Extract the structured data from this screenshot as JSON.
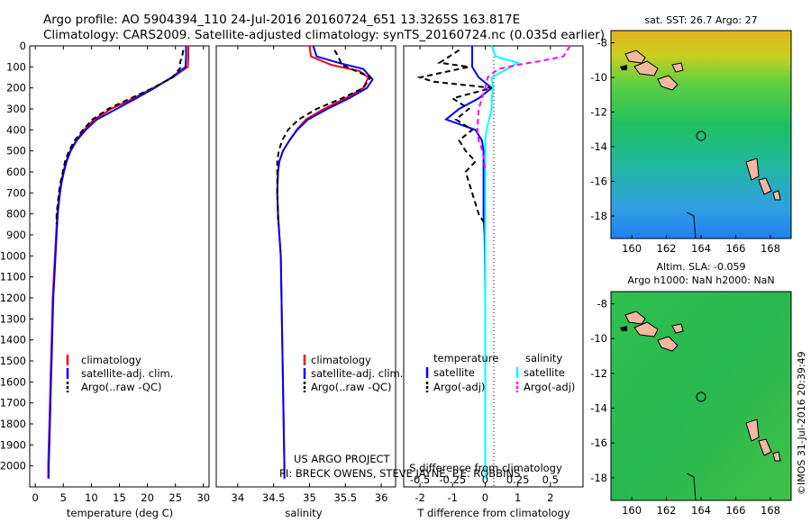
{
  "header": {
    "line1": "Argo profile: AO 5904394_110 24-Jul-2016 20160724_651 13.3265S 163.817E",
    "line2": "Climatology: CARS2009. Satellite-adjusted climatology: synTS_20160724.nc (0.035d earlier)"
  },
  "colors": {
    "climatology": "#ff0000",
    "satellite": "#0000ff",
    "argo": "#000000",
    "salinity_satellite": "#00ffff",
    "salinity_argo": "#ff00ff"
  },
  "footer": {
    "project": "US ARGO PROJECT",
    "pis": "PI: BRECK OWENS, STEVE JAYNE, P.E. ROBBINS",
    "imos": "©IMOS 31-Jul-2016 20:39:49"
  },
  "chart_data": [
    {
      "id": "temperature",
      "type": "line",
      "xlabel": "temperature (deg C)",
      "ylabel": "",
      "xlim": [
        -1,
        31
      ],
      "ylim": [
        2100,
        0
      ],
      "xticks": [
        0,
        5,
        10,
        15,
        20,
        25,
        30
      ],
      "yticks": [
        0,
        100,
        200,
        300,
        400,
        500,
        600,
        700,
        800,
        900,
        1000,
        1100,
        1200,
        1300,
        1400,
        1500,
        1600,
        1700,
        1800,
        1900,
        2000
      ],
      "legend": [
        "climatology",
        "satellite-adj. clim.",
        "Argo(..raw -QC)"
      ],
      "series": [
        {
          "name": "climatology",
          "color": "#ff0000",
          "dash": "",
          "points": [
            [
              27.3,
              0
            ],
            [
              27.3,
              50
            ],
            [
              27.2,
              100
            ],
            [
              24.5,
              150
            ],
            [
              21,
              200
            ],
            [
              17.5,
              250
            ],
            [
              13.5,
              300
            ],
            [
              10.5,
              350
            ],
            [
              8.7,
              400
            ],
            [
              7.3,
              450
            ],
            [
              6.2,
              500
            ],
            [
              5.5,
              550
            ],
            [
              5.0,
              600
            ],
            [
              4.6,
              650
            ],
            [
              4.3,
              700
            ],
            [
              4.1,
              750
            ],
            [
              3.9,
              800
            ],
            [
              3.7,
              900
            ],
            [
              3.5,
              1000
            ],
            [
              3.3,
              1100
            ],
            [
              3.1,
              1200
            ],
            [
              3.0,
              1300
            ],
            [
              2.9,
              1400
            ],
            [
              2.8,
              1500
            ],
            [
              2.7,
              1600
            ],
            [
              2.6,
              1700
            ],
            [
              2.5,
              1800
            ],
            [
              2.4,
              1900
            ],
            [
              2.3,
              2000
            ],
            [
              2.3,
              2060
            ]
          ]
        },
        {
          "name": "satellite-adj. clim.",
          "color": "#0000ff",
          "dash": "",
          "points": [
            [
              26.9,
              0
            ],
            [
              26.9,
              50
            ],
            [
              26.8,
              100
            ],
            [
              24.3,
              150
            ],
            [
              21.3,
              200
            ],
            [
              18,
              250
            ],
            [
              14.5,
              300
            ],
            [
              11,
              350
            ],
            [
              9,
              400
            ],
            [
              7.4,
              450
            ],
            [
              6.3,
              500
            ],
            [
              5.6,
              550
            ],
            [
              5.1,
              600
            ],
            [
              4.7,
              650
            ],
            [
              4.4,
              700
            ],
            [
              4.2,
              750
            ],
            [
              4.0,
              800
            ],
            [
              3.8,
              900
            ],
            [
              3.6,
              1000
            ],
            [
              3.4,
              1100
            ],
            [
              3.2,
              1200
            ],
            [
              3.1,
              1300
            ],
            [
              3.0,
              1400
            ],
            [
              2.9,
              1500
            ],
            [
              2.8,
              1600
            ],
            [
              2.7,
              1700
            ],
            [
              2.6,
              1800
            ],
            [
              2.5,
              1900
            ],
            [
              2.4,
              2000
            ],
            [
              2.4,
              2060
            ]
          ]
        },
        {
          "name": "Argo(..raw -QC)",
          "color": "#000000",
          "dash": "6,4",
          "points": [
            [
              26.4,
              20
            ],
            [
              26.2,
              50
            ],
            [
              25.8,
              80
            ],
            [
              26.0,
              100
            ],
            [
              24.5,
              150
            ],
            [
              21,
              200
            ],
            [
              17,
              250
            ],
            [
              13,
              300
            ],
            [
              10.2,
              350
            ],
            [
              8.5,
              400
            ],
            [
              7.0,
              450
            ],
            [
              6.0,
              500
            ],
            [
              5.3,
              550
            ],
            [
              4.9,
              600
            ],
            [
              4.5,
              650
            ],
            [
              4.2,
              700
            ],
            [
              4.0,
              750
            ],
            [
              3.8,
              800
            ],
            [
              3.8,
              850
            ]
          ]
        }
      ]
    },
    {
      "id": "salinity",
      "type": "line",
      "xlabel": "salinity",
      "ylabel": "",
      "xlim": [
        33.7,
        36.2
      ],
      "ylim": [
        2100,
        0
      ],
      "xticks": [
        34,
        34.5,
        35,
        35.5,
        36
      ],
      "legend": [
        "climatology",
        "satellite-adj. clim.",
        "Argo(..raw -QC)"
      ],
      "series": [
        {
          "name": "climatology",
          "color": "#ff0000",
          "dash": "",
          "points": [
            [
              35.0,
              0
            ],
            [
              35.02,
              50
            ],
            [
              35.3,
              90
            ],
            [
              35.7,
              120
            ],
            [
              35.82,
              150
            ],
            [
              35.75,
              200
            ],
            [
              35.5,
              250
            ],
            [
              35.2,
              300
            ],
            [
              34.95,
              350
            ],
            [
              34.82,
              400
            ],
            [
              34.72,
              450
            ],
            [
              34.63,
              500
            ],
            [
              34.58,
              550
            ],
            [
              34.56,
              600
            ],
            [
              34.55,
              700
            ],
            [
              34.56,
              800
            ],
            [
              34.58,
              900
            ],
            [
              34.6,
              1000
            ],
            [
              34.61,
              1200
            ],
            [
              34.62,
              1400
            ],
            [
              34.63,
              1600
            ],
            [
              34.64,
              1800
            ],
            [
              34.65,
              2000
            ],
            [
              34.65,
              2060
            ]
          ]
        },
        {
          "name": "satellite-adj. clim.",
          "color": "#0000ff",
          "dash": "",
          "points": [
            [
              35.05,
              0
            ],
            [
              35.1,
              50
            ],
            [
              35.4,
              80
            ],
            [
              35.75,
              110
            ],
            [
              35.88,
              160
            ],
            [
              35.8,
              200
            ],
            [
              35.55,
              250
            ],
            [
              35.25,
              300
            ],
            [
              34.98,
              350
            ],
            [
              34.83,
              400
            ],
            [
              34.72,
              450
            ],
            [
              34.63,
              500
            ],
            [
              34.58,
              550
            ],
            [
              34.56,
              600
            ],
            [
              34.55,
              700
            ],
            [
              34.56,
              800
            ],
            [
              34.58,
              900
            ],
            [
              34.6,
              1000
            ],
            [
              34.61,
              1200
            ],
            [
              34.62,
              1400
            ],
            [
              34.63,
              1600
            ],
            [
              34.64,
              1800
            ],
            [
              34.65,
              2000
            ],
            [
              34.65,
              2060
            ]
          ]
        },
        {
          "name": "Argo(..raw -QC)",
          "color": "#000000",
          "dash": "6,4",
          "points": [
            [
              35.35,
              20
            ],
            [
              35.4,
              50
            ],
            [
              35.45,
              90
            ],
            [
              35.65,
              120
            ],
            [
              35.85,
              150
            ],
            [
              35.75,
              200
            ],
            [
              35.45,
              250
            ],
            [
              35.1,
              300
            ],
            [
              34.85,
              350
            ],
            [
              34.7,
              400
            ],
            [
              34.62,
              450
            ],
            [
              34.57,
              500
            ],
            [
              34.55,
              550
            ],
            [
              34.55,
              600
            ],
            [
              34.55,
              700
            ],
            [
              34.56,
              800
            ],
            [
              34.56,
              850
            ]
          ]
        }
      ]
    },
    {
      "id": "differences",
      "type": "line",
      "xlabel": "T difference from climatology",
      "x2label": "S difference from climatology",
      "xlim": [
        -2.5,
        3.0
      ],
      "x2lim": [
        -0.625,
        0.75
      ],
      "ylim": [
        2100,
        0
      ],
      "xticks": [
        -2,
        -1,
        0,
        1,
        2
      ],
      "x2ticks": [
        "-0.5",
        "-0.25",
        "0",
        "0.25",
        "0.5"
      ],
      "legend_headers": [
        "temperature",
        "salinity"
      ],
      "legend": [
        "satellite",
        "Argo(-adj)",
        "satellite",
        "Argo(-adj)"
      ],
      "series": [
        {
          "name": "temperature satellite",
          "color": "#0000ff",
          "dash": "",
          "axis": "T",
          "points": [
            [
              -0.4,
              0
            ],
            [
              -0.4,
              50
            ],
            [
              -0.4,
              100
            ],
            [
              -0.2,
              150
            ],
            [
              0.2,
              200
            ],
            [
              -0.2,
              250
            ],
            [
              -0.8,
              300
            ],
            [
              -1.2,
              350
            ],
            [
              -0.3,
              400
            ],
            [
              -0.1,
              450
            ],
            [
              -0.05,
              500
            ],
            [
              -0.05,
              600
            ],
            [
              -0.05,
              700
            ],
            [
              -0.05,
              800
            ],
            [
              -0.02,
              900
            ],
            [
              -0.01,
              1000
            ],
            [
              0,
              1200
            ],
            [
              0,
              1500
            ],
            [
              0,
              2060
            ]
          ]
        },
        {
          "name": "temperature Argo(-adj)",
          "color": "#000000",
          "dash": "6,4",
          "axis": "T",
          "points": [
            [
              -0.8,
              20
            ],
            [
              -1.1,
              50
            ],
            [
              -1.4,
              80
            ],
            [
              -0.5,
              100
            ],
            [
              -2.0,
              150
            ],
            [
              -1.6,
              170
            ],
            [
              0.2,
              200
            ],
            [
              -1.0,
              250
            ],
            [
              -0.5,
              300
            ],
            [
              -0.9,
              350
            ],
            [
              -0.4,
              400
            ],
            [
              -0.8,
              450
            ],
            [
              -0.6,
              500
            ],
            [
              -0.3,
              550
            ],
            [
              -0.6,
              600
            ],
            [
              -0.5,
              650
            ],
            [
              -0.4,
              700
            ],
            [
              -0.3,
              750
            ],
            [
              -0.2,
              800
            ],
            [
              0,
              850
            ]
          ]
        },
        {
          "name": "salinity satellite",
          "color": "#00ffff",
          "dash": "",
          "axis": "S",
          "points": [
            [
              0.05,
              0
            ],
            [
              0.08,
              50
            ],
            [
              0.25,
              80
            ],
            [
              0.2,
              100
            ],
            [
              0.05,
              150
            ],
            [
              0.06,
              200
            ],
            [
              0.05,
              250
            ],
            [
              0.05,
              300
            ],
            [
              0.03,
              350
            ],
            [
              0.01,
              400
            ],
            [
              0,
              450
            ],
            [
              0,
              500
            ],
            [
              0,
              700
            ],
            [
              0,
              1000
            ],
            [
              0,
              2060
            ]
          ]
        },
        {
          "name": "salinity Argo(-adj)",
          "color": "#ff00ff",
          "dash": "6,4",
          "axis": "S",
          "points": [
            [
              0.65,
              0
            ],
            [
              0.6,
              50
            ],
            [
              0.4,
              75
            ],
            [
              0.25,
              90
            ],
            [
              0.1,
              110
            ],
            [
              0.02,
              150
            ],
            [
              0,
              200
            ],
            [
              -0.05,
              300
            ],
            [
              -0.06,
              400
            ],
            [
              -0.05,
              450
            ],
            [
              -0.02,
              500
            ],
            [
              0,
              600
            ]
          ]
        }
      ]
    },
    {
      "id": "sst_map",
      "type": "heatmap",
      "title": "sat. SST: 26.7 Argo: 27",
      "xlim": [
        158.8,
        169.2
      ],
      "ylim": [
        -19.3,
        -7.3
      ],
      "xticks": [
        160,
        162,
        164,
        166,
        168
      ],
      "yticks": [
        -8,
        -10,
        -12,
        -14,
        -16,
        -18
      ],
      "argo_position": [
        163.817,
        -13.3265
      ]
    },
    {
      "id": "sla_map",
      "type": "heatmap",
      "title": "Altim. SLA: -0.059",
      "subtitle": "Argo h1000: NaN h2000: NaN",
      "xlim": [
        158.8,
        169.2
      ],
      "ylim": [
        -19.3,
        -7.3
      ],
      "xticks": [
        160,
        162,
        164,
        166,
        168
      ],
      "yticks": [
        -8,
        -10,
        -12,
        -14,
        -16,
        -18
      ],
      "argo_position": [
        163.817,
        -13.3265
      ]
    }
  ]
}
